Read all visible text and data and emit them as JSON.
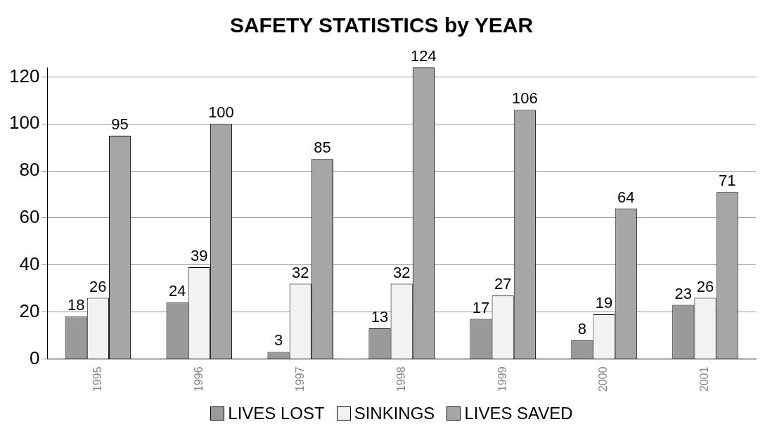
{
  "chart_data": {
    "type": "bar",
    "title": "SAFETY STATISTICS by YEAR",
    "categories": [
      "1995",
      "1996",
      "1997",
      "1998",
      "1999",
      "2000",
      "2001"
    ],
    "series": [
      {
        "name": "LIVES LOST",
        "color": "#9a9a9a",
        "values": [
          18,
          24,
          3,
          13,
          17,
          8,
          23
        ]
      },
      {
        "name": "SINKINGS",
        "color": "#f2f2f2",
        "values": [
          26,
          39,
          32,
          32,
          27,
          19,
          26
        ]
      },
      {
        "name": "LIVES SAVED",
        "color": "#a6a6a6",
        "values": [
          95,
          100,
          85,
          124,
          106,
          64,
          71
        ]
      }
    ],
    "ylim": [
      0,
      124
    ],
    "yticks": [
      0,
      20,
      40,
      60,
      80,
      100,
      120
    ],
    "grid": "y",
    "legend": "bottom",
    "data_labels": true
  }
}
